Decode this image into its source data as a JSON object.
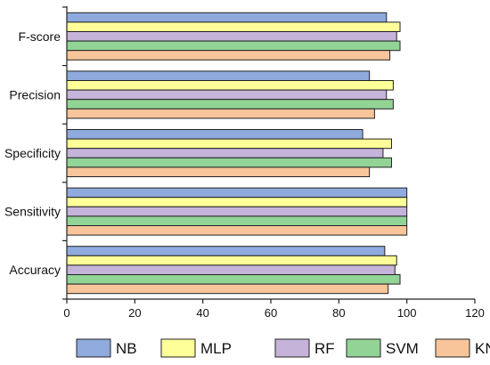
{
  "chart_data": {
    "type": "bar",
    "orientation": "horizontal",
    "categories": [
      "F-score",
      "Precision",
      "Specificity",
      "Sensitivity",
      "Accuracy"
    ],
    "series": [
      {
        "name": "NB",
        "color": "#8FAADC",
        "values": [
          94,
          89,
          87,
          100,
          93.5
        ]
      },
      {
        "name": "MLP",
        "color": "#FFFF99",
        "values": [
          98,
          96,
          95.5,
          100,
          97
        ]
      },
      {
        "name": "RF",
        "color": "#C5B3D9",
        "values": [
          97,
          94,
          93,
          100,
          96.5
        ]
      },
      {
        "name": "SVM",
        "color": "#92D396",
        "values": [
          98,
          96,
          95.5,
          100,
          98
        ]
      },
      {
        "name": "KNN",
        "color": "#F8C59A",
        "values": [
          95,
          90.5,
          89,
          100,
          94.5
        ]
      }
    ],
    "xticks": [
      "0",
      "20",
      "40",
      "60",
      "80",
      "100",
      "120"
    ],
    "xlim": [
      0,
      120
    ],
    "title": "",
    "xlabel": "",
    "ylabel": "",
    "grid": false,
    "legend_position": "bottom"
  }
}
